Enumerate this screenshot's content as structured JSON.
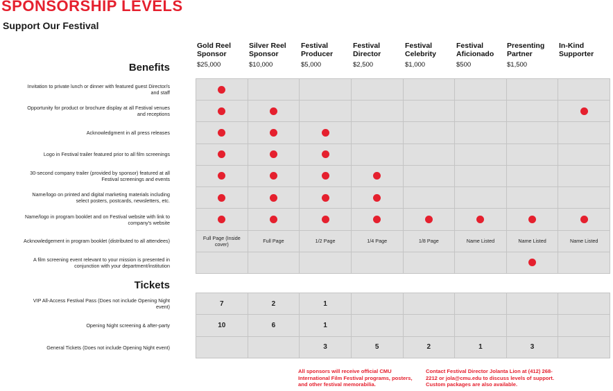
{
  "title": "SPONSORSHIP LEVELS",
  "subtitle": "Support Our Festival",
  "colors": {
    "accent": "#e5202e",
    "cell": "#e0e0e0"
  },
  "tiers": [
    {
      "name": "Gold Reel Sponsor",
      "price": "$25,000"
    },
    {
      "name": "Silver Reel Sponsor",
      "price": "$10,000"
    },
    {
      "name": "Festival Producer",
      "price": "$5,000"
    },
    {
      "name": "Festival Director",
      "price": "$2,500"
    },
    {
      "name": "Festival Celebrity",
      "price": "$1,000"
    },
    {
      "name": "Festival Aficionado",
      "price": "$500"
    },
    {
      "name": "Presenting Partner",
      "price": "$1,500"
    },
    {
      "name": "In-Kind Supporter",
      "price": ""
    }
  ],
  "benefits": {
    "heading": "Benefits",
    "rows": [
      {
        "label": "Invitation to private lunch or dinner with featured guest Director/s and staff",
        "cells": [
          "dot",
          "",
          "",
          "",
          "",
          "",
          "",
          ""
        ]
      },
      {
        "label": "Opportunity for product or brochure display at all Festival venues and receptions",
        "cells": [
          "dot",
          "dot",
          "",
          "",
          "",
          "",
          "",
          "dot"
        ]
      },
      {
        "label": "Acknowledgment in all press releases",
        "cells": [
          "dot",
          "dot",
          "dot",
          "",
          "",
          "",
          "",
          ""
        ]
      },
      {
        "label": "Logo in Festival trailer featured prior to all film screenings",
        "cells": [
          "dot",
          "dot",
          "dot",
          "",
          "",
          "",
          "",
          ""
        ]
      },
      {
        "label": "30-second company trailer (provided by sponsor) featured at all Festival screenings and events",
        "cells": [
          "dot",
          "dot",
          "dot",
          "dot",
          "",
          "",
          "",
          ""
        ]
      },
      {
        "label": "Name/logo on printed and digital marketing materials including select posters, postcards, newsletters, etc.",
        "cells": [
          "dot",
          "dot",
          "dot",
          "dot",
          "",
          "",
          "",
          ""
        ]
      },
      {
        "label": "Name/logo in program booklet and on Festival website with link to company's website",
        "cells": [
          "dot",
          "dot",
          "dot",
          "dot",
          "dot",
          "dot",
          "dot",
          "dot"
        ]
      },
      {
        "label": "Acknowledgement in program booklet (distributed to all attendees)",
        "cells": [
          "Full Page (Inside cover)",
          "Full Page",
          "1/2 Page",
          "1/4 Page",
          "1/8 Page",
          "Name Listed",
          "Name Listed",
          "Name Listed"
        ]
      },
      {
        "label": "A film screening event relevant to your mission is presented in conjunction with your department/institution",
        "cells": [
          "",
          "",
          "",
          "",
          "",
          "",
          "dot",
          ""
        ]
      }
    ]
  },
  "tickets": {
    "heading": "Tickets",
    "rows": [
      {
        "label": "VIP All-Access Festival Pass (Does not include Opening Night event)",
        "cells": [
          "7",
          "2",
          "1",
          "",
          "",
          "",
          "",
          ""
        ]
      },
      {
        "label": "Opening Night screening & after-party",
        "cells": [
          "10",
          "6",
          "1",
          "",
          "",
          "",
          "",
          ""
        ]
      },
      {
        "label": "General Tickets (Does not include Opening Night event)",
        "cells": [
          "",
          "",
          "3",
          "5",
          "2",
          "1",
          "3",
          ""
        ]
      }
    ]
  },
  "notes": {
    "left": "All sponsors will receive official CMU International Film Festival programs, posters, and other festival memorabilia.",
    "right": "Contact Festival Director Jolanta Lion at (412) 268-2212 or jola@cmu.edu to discuss levels of support. Custom packages are also available."
  }
}
